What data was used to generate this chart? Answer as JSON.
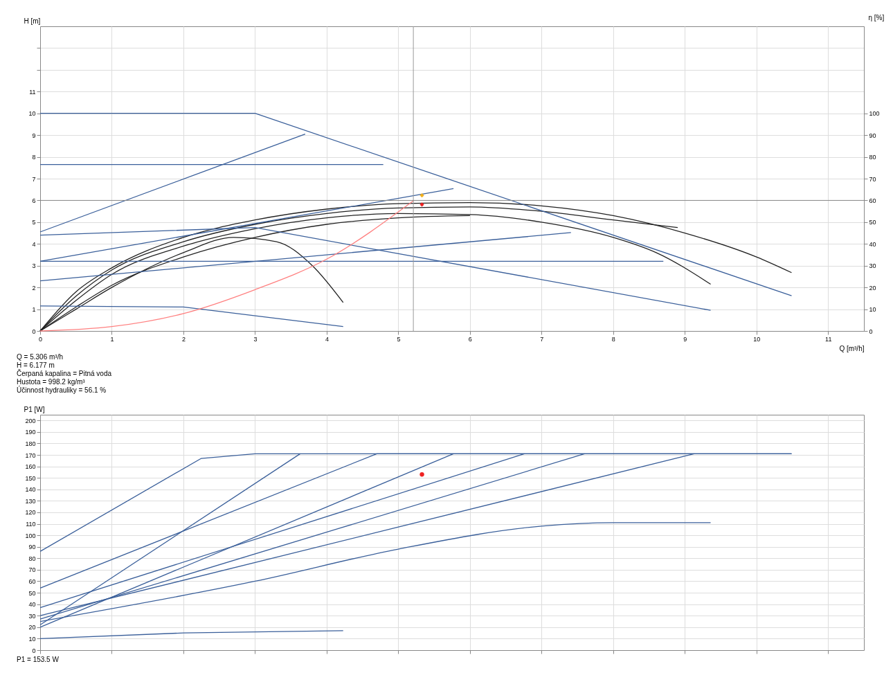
{
  "chart_data": [
    {
      "type": "line",
      "xlabel": "Q [m³/h]",
      "ylabel": "H [m]",
      "y2label": "η [%]",
      "xlim": [
        0,
        11.5
      ],
      "xticks": [
        0,
        1,
        2,
        3,
        4,
        5,
        6,
        7,
        8,
        9,
        10,
        11
      ],
      "ylim": [
        0,
        14
      ],
      "yticks": [
        0,
        1,
        2,
        3,
        4,
        5,
        6,
        7,
        8,
        9,
        10,
        11,
        {
          "value": 12,
          "label": null
        },
        {
          "value": 13,
          "label": null
        }
      ],
      "y2lim": [
        0,
        140
      ],
      "y2ticks": [
        0,
        10,
        20,
        30,
        40,
        50,
        60,
        70,
        80,
        90,
        100
      ],
      "grid": true,
      "series": [
        {
          "color": "#222222",
          "x": [
            0,
            0.5,
            1,
            2,
            3,
            4,
            5,
            6,
            7,
            8,
            9,
            10,
            10.49
          ],
          "values": [
            0,
            1.8,
            2.9,
            4.3,
            5.1,
            5.6,
            5.85,
            5.9,
            5.75,
            5.3,
            4.5,
            3.4,
            2.68
          ]
        },
        {
          "color": "#222222",
          "x": [
            0,
            0.5,
            1,
            2,
            3,
            4,
            5,
            6,
            7,
            8,
            8.9
          ],
          "values": [
            0,
            1.6,
            2.8,
            4.1,
            4.9,
            5.4,
            5.65,
            5.7,
            5.5,
            5.1,
            4.75
          ]
        },
        {
          "color": "#222222",
          "x": [
            0,
            0.5,
            1,
            2,
            3,
            4,
            5,
            6,
            7,
            8,
            8.6,
            9.36
          ],
          "values": [
            0,
            1.4,
            2.6,
            3.9,
            4.7,
            5.2,
            5.4,
            5.35,
            5.0,
            4.3,
            3.6,
            2.15
          ]
        },
        {
          "color": "#222222",
          "x": [
            0,
            0.5,
            1,
            2,
            3,
            4,
            5,
            6
          ],
          "values": [
            0,
            1.1,
            2.1,
            3.4,
            4.3,
            4.9,
            5.2,
            5.3
          ]
        },
        {
          "color": "#222222",
          "x": [
            0,
            0.5,
            1,
            2,
            2.7,
            3.3,
            3.8,
            4.23
          ],
          "values": [
            0,
            1.0,
            2.0,
            3.6,
            4.3,
            4.1,
            3.0,
            1.31
          ]
        },
        {
          "color": "#3a5f9a",
          "x": [
            0,
            3,
            10.49
          ],
          "values": [
            10,
            10,
            1.62
          ]
        },
        {
          "color": "#3a5f9a",
          "x": [
            0,
            4.79
          ],
          "values": [
            7.65,
            7.65
          ]
        },
        {
          "color": "#3a5f9a",
          "x": [
            0,
            3.7
          ],
          "values": [
            4.55,
            9.05
          ]
        },
        {
          "color": "#3a5f9a",
          "x": [
            0,
            3,
            9.36
          ],
          "values": [
            4.4,
            4.75,
            0.95
          ]
        },
        {
          "color": "#3a5f9a",
          "x": [
            0,
            5.77
          ],
          "values": [
            3.2,
            6.54
          ]
        },
        {
          "color": "#3a5f9a",
          "x": [
            0,
            8.7
          ],
          "values": [
            3.2,
            3.2
          ]
        },
        {
          "color": "#3a5f9a",
          "x": [
            0,
            7.41
          ],
          "values": [
            2.3,
            4.52
          ]
        },
        {
          "color": "#3a5f9a",
          "x": [
            0,
            2,
            4.23
          ],
          "values": [
            1.15,
            1.1,
            0.2
          ]
        },
        {
          "color": "#ff8080",
          "x": [
            0,
            1,
            2,
            3,
            4,
            5.21
          ],
          "values": [
            0,
            0.2,
            0.8,
            1.9,
            3.3,
            5.98
          ]
        },
        {
          "type": "scatter",
          "marker": "diamond",
          "color": "#f0b020",
          "x": [
            5.33
          ],
          "values": [
            6.23
          ]
        },
        {
          "type": "scatter",
          "marker": "diamond",
          "color": "#ee2222",
          "x": [
            5.33
          ],
          "values": [
            5.81
          ]
        }
      ],
      "ref_lines": [
        {
          "axis": "x",
          "value": 5.21,
          "color": "#999999"
        },
        {
          "axis": "y",
          "value": 6,
          "color": "#888888"
        }
      ],
      "annotations": [
        "Q = 5.306 m³/h",
        "H = 6.177 m",
        "Čerpaná kapalina = Pitná voda",
        "Hustota = 998.2 kg/m³",
        "Účinnost hydrauliky = 56.1 %"
      ]
    },
    {
      "type": "line",
      "ylabel": "P1 [W]",
      "xlim": [
        0,
        11.5
      ],
      "xticks": [
        0,
        1,
        2,
        3,
        4,
        5,
        6,
        7,
        8,
        9,
        10,
        11
      ],
      "ylim": [
        0,
        205
      ],
      "yticks": [
        0,
        10,
        20,
        30,
        40,
        50,
        60,
        70,
        80,
        90,
        100,
        110,
        120,
        130,
        140,
        150,
        160,
        170,
        180,
        190,
        200
      ],
      "grid": true,
      "tick_labels": "y",
      "series": [
        {
          "color": "#3a5f9a",
          "x": [
            0,
            2.25,
            3,
            10.49
          ],
          "values": [
            86,
            167,
            171,
            171
          ]
        },
        {
          "color": "#3a5f9a",
          "x": [
            0,
            4.7,
            10.49
          ],
          "values": [
            54,
            171,
            171
          ]
        },
        {
          "color": "#3a5f9a",
          "x": [
            0,
            3.63
          ],
          "values": [
            22,
            171
          ]
        },
        {
          "color": "#3a5f9a",
          "x": [
            0,
            5.77
          ],
          "values": [
            20,
            171
          ]
        },
        {
          "color": "#3a5f9a",
          "x": [
            0,
            6.76
          ],
          "values": [
            37,
            171
          ]
        },
        {
          "color": "#3a5f9a",
          "x": [
            0,
            7.6
          ],
          "values": [
            27,
            171
          ]
        },
        {
          "color": "#3a5f9a",
          "x": [
            0,
            9.13
          ],
          "values": [
            30,
            171
          ]
        },
        {
          "color": "#3a5f9a",
          "x": [
            0,
            3,
            5,
            7,
            8,
            9.36
          ],
          "values": [
            25,
            60,
            88,
            108,
            111,
            111
          ]
        },
        {
          "color": "#3a5f9a",
          "x": [
            0,
            2,
            4.23
          ],
          "values": [
            10,
            15,
            17
          ]
        },
        {
          "type": "scatter",
          "marker": "circle",
          "color": "#ee2222",
          "x": [
            5.33
          ],
          "values": [
            153
          ]
        }
      ],
      "annotations": [
        "P1 = 153.5 W"
      ]
    }
  ]
}
